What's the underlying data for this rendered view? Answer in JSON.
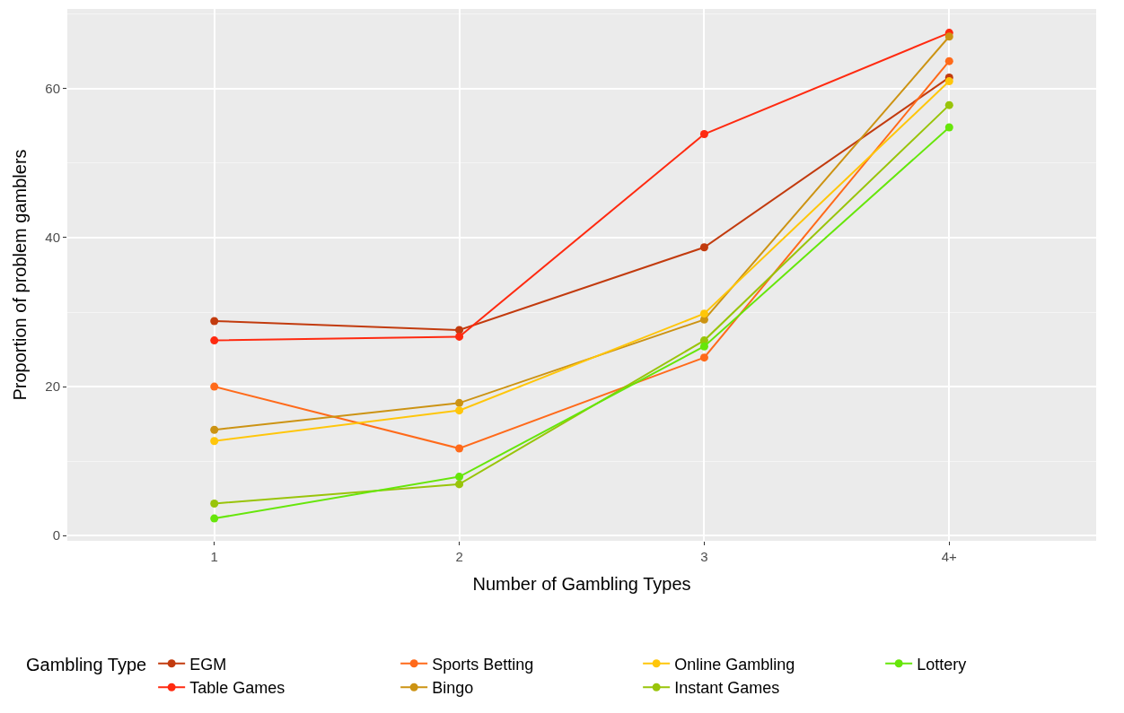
{
  "chart_data": {
    "type": "line",
    "xlabel": "Number of Gambling Types",
    "ylabel": "Proportion of problem gamblers",
    "legend_title": "Gambling Type",
    "categories": [
      "1",
      "2",
      "3",
      "4+"
    ],
    "series": [
      {
        "name": "EGM",
        "color": "#c23b0e",
        "values": [
          28.8,
          27.6,
          38.7,
          61.5
        ]
      },
      {
        "name": "Table Games",
        "color": "#ff2a10",
        "values": [
          26.2,
          26.7,
          53.9,
          67.5
        ]
      },
      {
        "name": "Sports Betting",
        "color": "#ff6a1a",
        "values": [
          20.0,
          11.7,
          23.9,
          63.7
        ]
      },
      {
        "name": "Bingo",
        "color": "#cc9313",
        "values": [
          14.2,
          17.8,
          29.0,
          67.0
        ]
      },
      {
        "name": "Online Gambling",
        "color": "#ffc60a",
        "values": [
          12.7,
          16.8,
          29.8,
          61.0
        ]
      },
      {
        "name": "Instant Games",
        "color": "#99c40a",
        "values": [
          4.3,
          6.9,
          26.2,
          57.8
        ]
      },
      {
        "name": "Lottery",
        "color": "#66e60a",
        "values": [
          2.3,
          7.9,
          25.4,
          54.8
        ]
      }
    ],
    "ylim": [
      -0.7,
      70.7
    ],
    "yticks": [
      0,
      20,
      40,
      60
    ],
    "grid": true,
    "legend": "bottom",
    "marker": "circle",
    "line_style": "solid"
  }
}
